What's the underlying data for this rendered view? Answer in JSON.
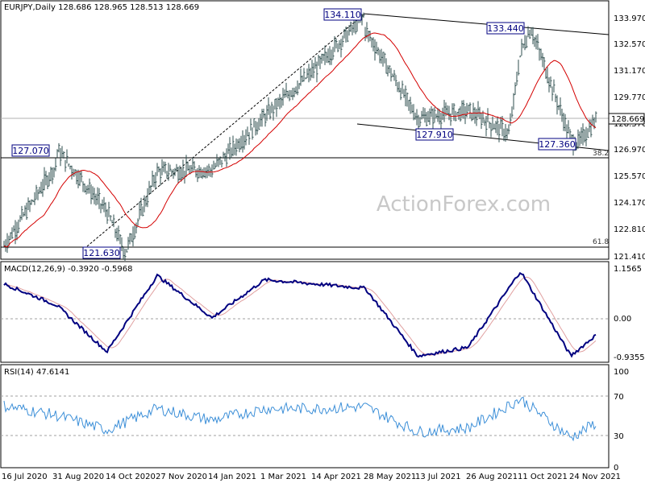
{
  "main_panel": {
    "header": "EURJPY,Daily  128.686 128.965 128.513 128.669",
    "watermark": "ActionForex.com",
    "yticks": [
      "133.970",
      "132.570",
      "131.170",
      "129.770",
      "128.370",
      "126.970",
      "125.570",
      "124.170",
      "122.810",
      "121.410"
    ],
    "current_price": "128.669",
    "annotations": [
      "134.110",
      "133.440",
      "127.910",
      "127.360",
      "127.070",
      "121.630"
    ],
    "fib_labels": [
      "38.2",
      "61.8"
    ]
  },
  "macd_panel": {
    "header": "MACD(12,26,9) -0.3920 -0.5968",
    "yticks": [
      "1.1565",
      "0.00",
      "-0.9355"
    ]
  },
  "rsi_panel": {
    "header": "RSI(14) 47.6141",
    "yticks": [
      "100",
      "70",
      "30",
      "0"
    ]
  },
  "xaxis": {
    "labels": [
      "16 Jul 2020",
      "31 Aug 2020",
      "14 Oct 2020",
      "27 Nov 2020",
      "14 Jan 2021",
      "1 Mar 2021",
      "14 Apr 2021",
      "28 May 2021",
      "13 Jul 2021",
      "26 Aug 2021",
      "11 Oct 2021",
      "24 Nov 2021"
    ]
  },
  "colors": {
    "price_bars": "#2f4f4f",
    "ma_line": "#d40000",
    "macd_line": "#000080",
    "macd_signal": "#e0a0a0",
    "rsi_line": "#3c8fd8",
    "trendline": "#000000",
    "label_box_border": "#000080",
    "label_box_text": "#000080"
  },
  "chart_data": [
    {
      "type": "line",
      "series": [
        {
          "name": "EURJPY",
          "x": [
            "16 Jul 2020",
            "31 Aug 2020",
            "14 Oct 2020",
            "27 Nov 2020",
            "14 Jan 2021",
            "1 Mar 2021",
            "14 Apr 2021",
            "28 May 2021",
            "13 Jul 2021",
            "26 Aug 2021",
            "11 Oct 2021",
            "24 Nov 2021"
          ],
          "values": [
            122.0,
            126.3,
            123.8,
            125.9,
            126.0,
            128.8,
            131.3,
            133.4,
            128.7,
            129.1,
            132.2,
            127.6
          ]
        }
      ],
      "pivots": [
        {
          "x": "27 May 2021",
          "y": 134.11
        },
        {
          "x": "1 Oct 2021",
          "y": 127.91
        },
        {
          "x": "20 Oct 2021",
          "y": 133.44
        },
        {
          "x": "30 Nov 2021",
          "y": 127.36
        },
        {
          "x": "31 Aug 2020",
          "y": 127.07
        },
        {
          "x": "30 Oct 2020",
          "y": 121.63
        }
      ],
      "last_price": 128.669,
      "ylim": [
        121.41,
        133.97
      ]
    },
    {
      "type": "line",
      "series": [
        {
          "name": "MACD",
          "x": [
            "16 Jul 2020",
            "31 Aug 2020",
            "14 Oct 2020",
            "27 Nov 2020",
            "14 Jan 2021",
            "1 Mar 2021",
            "14 Apr 2021",
            "28 May 2021",
            "13 Jul 2021",
            "26 Aug 2021",
            "11 Oct 2021",
            "24 Nov 2021"
          ],
          "values": [
            0.8,
            0.3,
            -0.8,
            1.0,
            0.0,
            0.9,
            0.8,
            0.7,
            -0.9,
            -0.7,
            1.1,
            -0.9
          ]
        }
      ],
      "last": [
        -0.392,
        -0.5968
      ],
      "ylim": [
        -0.9355,
        1.1565
      ]
    },
    {
      "type": "line",
      "series": [
        {
          "name": "RSI(14)",
          "x": [
            "16 Jul 2020",
            "31 Aug 2020",
            "14 Oct 2020",
            "27 Nov 2020",
            "14 Jan 2021",
            "1 Mar 2021",
            "14 Apr 2021",
            "28 May 2021",
            "13 Jul 2021",
            "26 Aug 2021",
            "11 Oct 2021",
            "24 Nov 2021"
          ],
          "values": [
            65,
            55,
            40,
            62,
            50,
            62,
            62,
            64,
            38,
            42,
            72,
            32
          ]
        }
      ],
      "last": 47.6141,
      "ylim": [
        0,
        100
      ]
    }
  ]
}
